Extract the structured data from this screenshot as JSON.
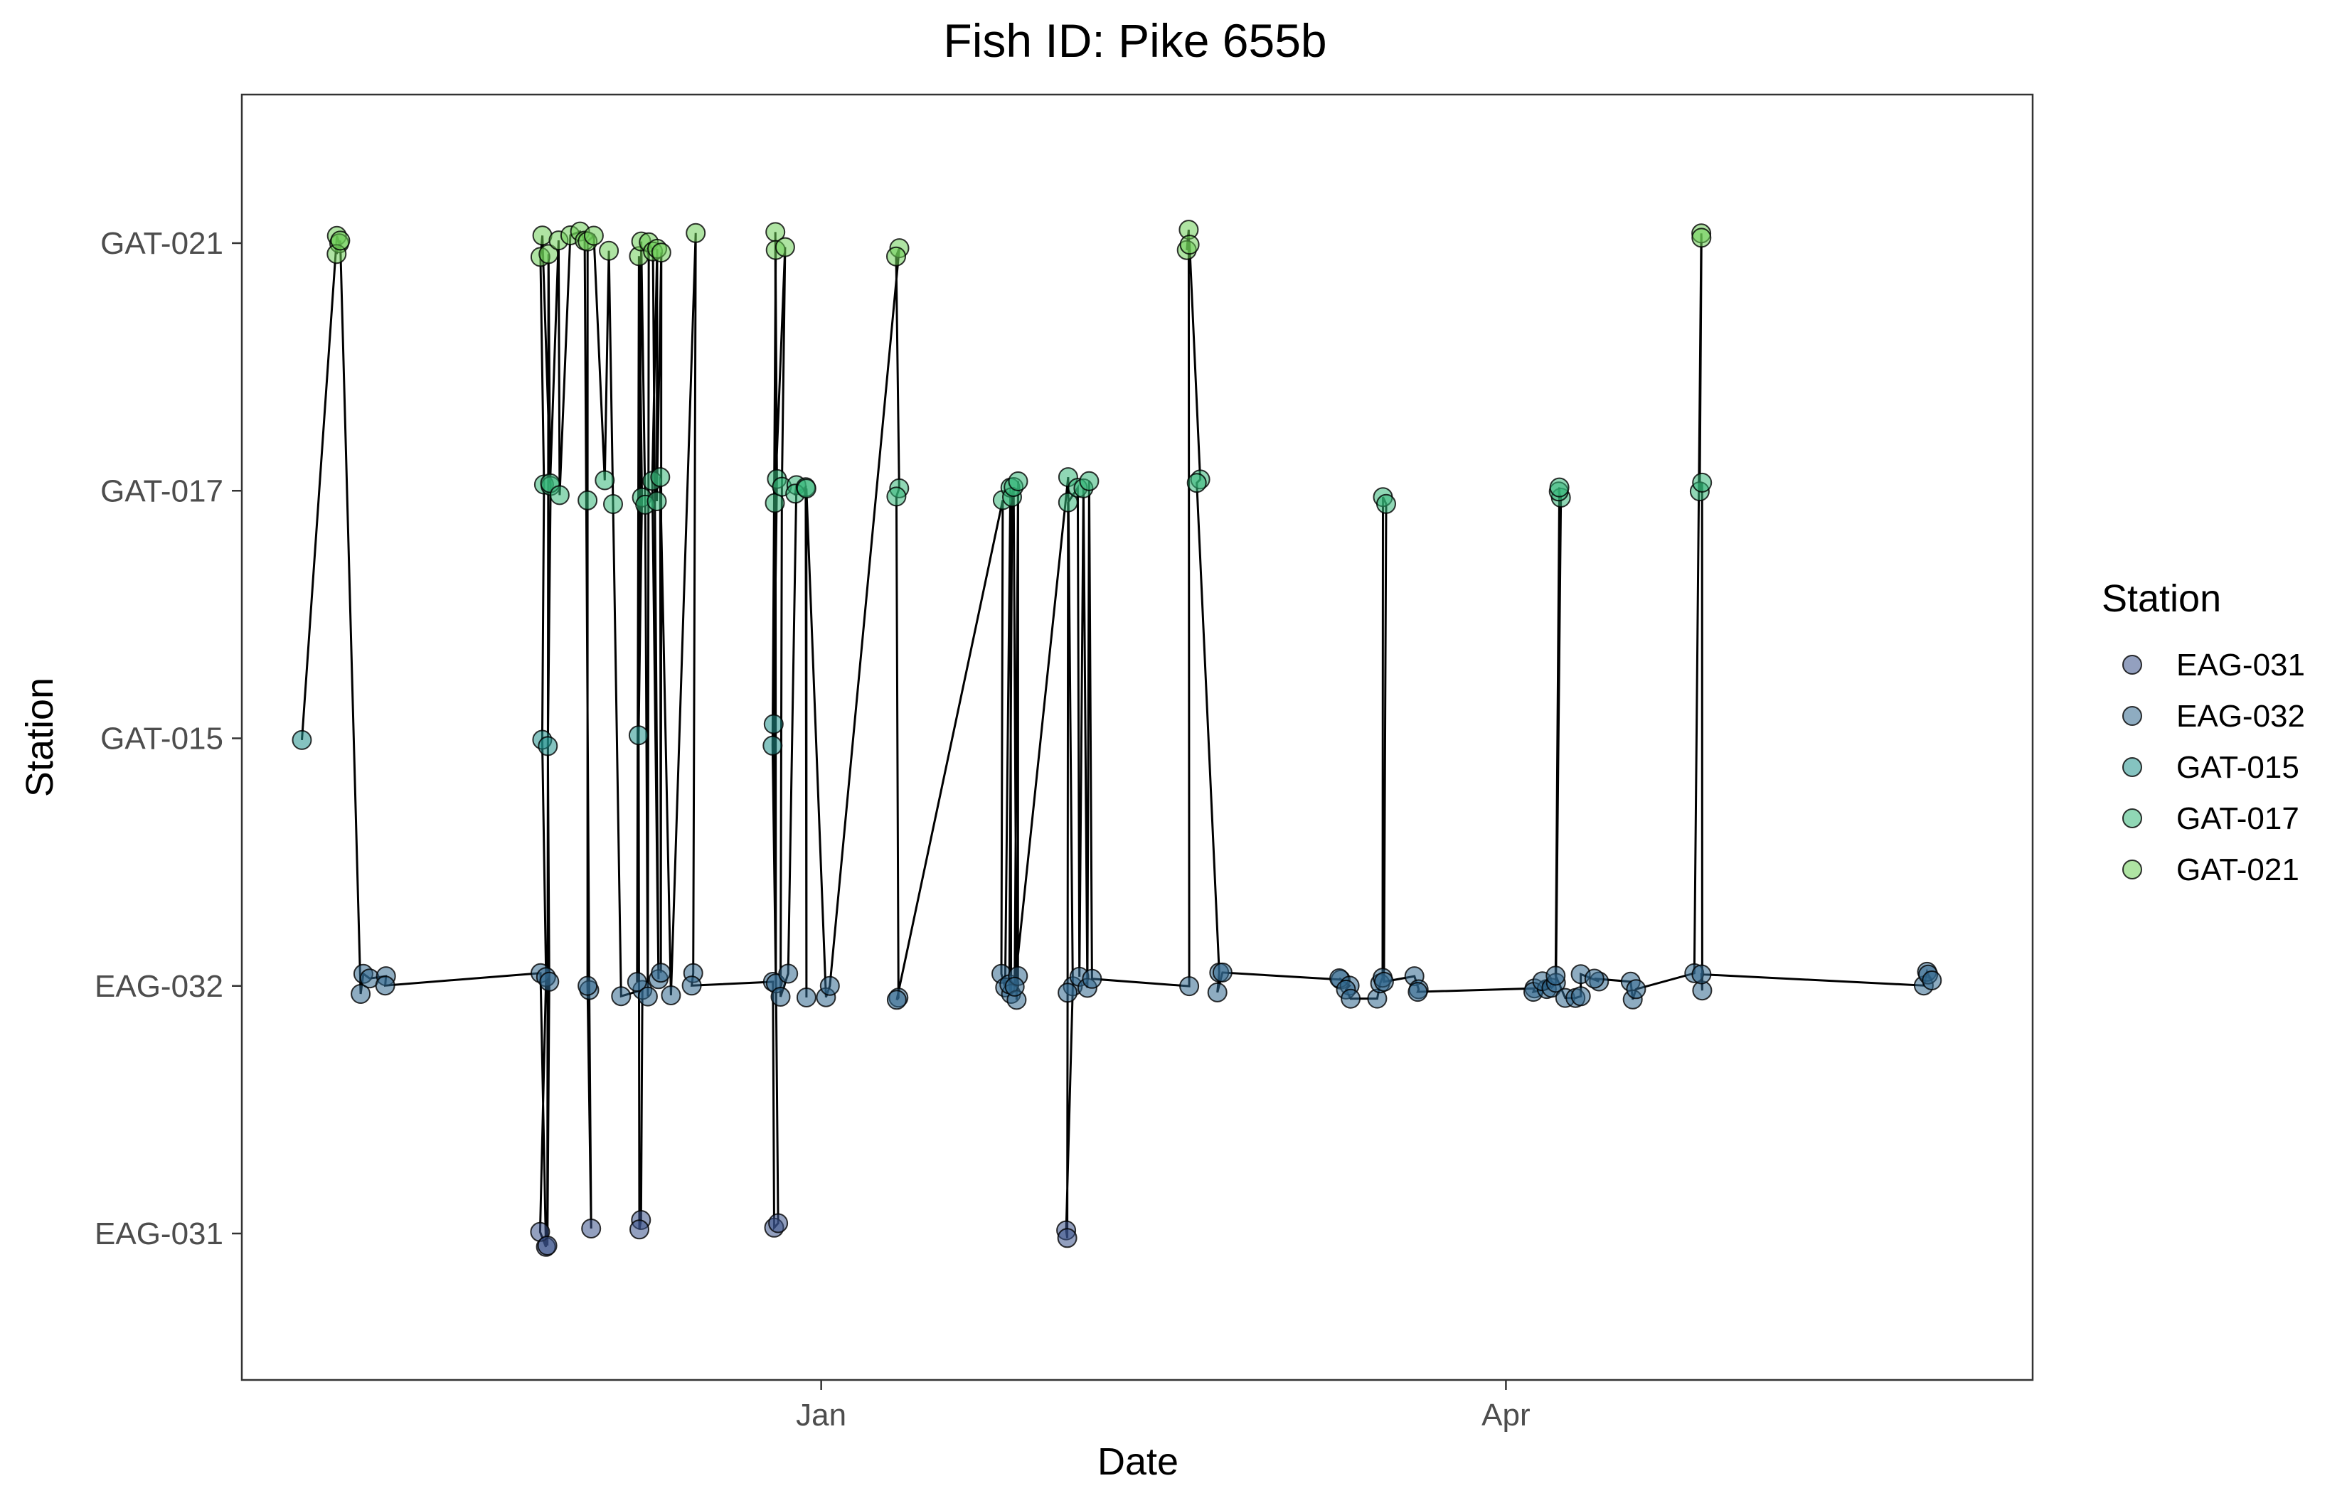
{
  "chart_data": {
    "type": "scatter",
    "title": "Fish ID: Pike 655b",
    "xlabel": "Date",
    "ylabel": "Station",
    "x_axis": {
      "kind": "date",
      "ticks": [
        {
          "label": "Jan",
          "date": "2020-01-01"
        },
        {
          "label": "Apr",
          "date": "2020-04-01"
        }
      ],
      "range": [
        "2019-10-16",
        "2020-06-10"
      ]
    },
    "y_axis": {
      "kind": "categorical",
      "categories": [
        "EAG-031",
        "EAG-032",
        "GAT-015",
        "GAT-017",
        "GAT-021"
      ]
    },
    "legend": {
      "title": "Station",
      "position": "right",
      "entries": [
        "EAG-031",
        "EAG-032",
        "GAT-015",
        "GAT-017",
        "GAT-021"
      ]
    },
    "colors": {
      "EAG-031": "#3b528b",
      "EAG-032": "#31688e",
      "GAT-015": "#21918c",
      "GAT-017": "#35b779",
      "GAT-021": "#6ece58",
      "line": "#000000",
      "frame": "#333333"
    },
    "grid": false,
    "track_line": true,
    "points": [
      {
        "x": "2019-10-24",
        "y": "GAT-015"
      },
      {
        "x": "2019-10-29",
        "y": "GAT-021"
      },
      {
        "x": "2019-10-29",
        "y": "GAT-021"
      },
      {
        "x": "2019-10-29",
        "y": "GAT-021"
      },
      {
        "x": "2019-10-29",
        "y": "GAT-021"
      },
      {
        "x": "2019-11-01",
        "y": "EAG-032"
      },
      {
        "x": "2019-11-01",
        "y": "EAG-032"
      },
      {
        "x": "2019-11-02",
        "y": "EAG-032"
      },
      {
        "x": "2019-11-04",
        "y": "EAG-032"
      },
      {
        "x": "2019-11-04",
        "y": "EAG-032"
      },
      {
        "x": "2019-11-25",
        "y": "EAG-032"
      },
      {
        "x": "2019-11-25",
        "y": "EAG-031"
      },
      {
        "x": "2019-11-25",
        "y": "EAG-031"
      },
      {
        "x": "2019-11-25",
        "y": "EAG-032"
      },
      {
        "x": "2019-11-25",
        "y": "GAT-015"
      },
      {
        "x": "2019-11-25",
        "y": "GAT-017"
      },
      {
        "x": "2019-11-25",
        "y": "GAT-021"
      },
      {
        "x": "2019-11-25",
        "y": "GAT-021"
      },
      {
        "x": "2019-11-26",
        "y": "GAT-017"
      },
      {
        "x": "2019-11-26",
        "y": "GAT-015"
      },
      {
        "x": "2019-11-26",
        "y": "EAG-032"
      },
      {
        "x": "2019-11-26",
        "y": "EAG-031"
      },
      {
        "x": "2019-11-26",
        "y": "GAT-021"
      },
      {
        "x": "2019-11-26",
        "y": "GAT-017"
      },
      {
        "x": "2019-11-27",
        "y": "GAT-021"
      },
      {
        "x": "2019-11-27",
        "y": "GAT-017"
      },
      {
        "x": "2019-11-29",
        "y": "GAT-021"
      },
      {
        "x": "2019-11-30",
        "y": "GAT-021"
      },
      {
        "x": "2019-12-01",
        "y": "GAT-021"
      },
      {
        "x": "2019-12-01",
        "y": "EAG-032"
      },
      {
        "x": "2019-12-01",
        "y": "EAG-031"
      },
      {
        "x": "2019-12-01",
        "y": "EAG-032"
      },
      {
        "x": "2019-12-01",
        "y": "GAT-017"
      },
      {
        "x": "2019-12-01",
        "y": "GAT-021"
      },
      {
        "x": "2019-12-02",
        "y": "GAT-021"
      },
      {
        "x": "2019-12-03",
        "y": "GAT-017"
      },
      {
        "x": "2019-12-04",
        "y": "GAT-021"
      },
      {
        "x": "2019-12-04",
        "y": "GAT-017"
      },
      {
        "x": "2019-12-05",
        "y": "EAG-032"
      },
      {
        "x": "2019-12-08",
        "y": "EAG-032"
      },
      {
        "x": "2019-12-08",
        "y": "EAG-031"
      },
      {
        "x": "2019-12-08",
        "y": "EAG-031"
      },
      {
        "x": "2019-12-08",
        "y": "GAT-015"
      },
      {
        "x": "2019-12-08",
        "y": "GAT-017"
      },
      {
        "x": "2019-12-08",
        "y": "GAT-021"
      },
      {
        "x": "2019-12-08",
        "y": "EAG-032"
      },
      {
        "x": "2019-12-08",
        "y": "GAT-021"
      },
      {
        "x": "2019-12-09",
        "y": "GAT-017"
      },
      {
        "x": "2019-12-09",
        "y": "EAG-032"
      },
      {
        "x": "2019-12-09",
        "y": "GAT-021"
      },
      {
        "x": "2019-12-10",
        "y": "GAT-021"
      },
      {
        "x": "2019-12-10",
        "y": "EAG-032"
      },
      {
        "x": "2019-12-10",
        "y": "GAT-017"
      },
      {
        "x": "2019-12-10",
        "y": "GAT-021"
      },
      {
        "x": "2019-12-10",
        "y": "GAT-017"
      },
      {
        "x": "2019-12-11",
        "y": "GAT-021"
      },
      {
        "x": "2019-12-11",
        "y": "EAG-032"
      },
      {
        "x": "2019-12-11",
        "y": "GAT-017"
      },
      {
        "x": "2019-12-12",
        "y": "EAG-032"
      },
      {
        "x": "2019-12-15",
        "y": "GAT-021"
      },
      {
        "x": "2019-12-15",
        "y": "EAG-032"
      },
      {
        "x": "2019-12-15",
        "y": "EAG-032"
      },
      {
        "x": "2019-12-26",
        "y": "EAG-032"
      },
      {
        "x": "2019-12-26",
        "y": "EAG-031"
      },
      {
        "x": "2019-12-26",
        "y": "EAG-031"
      },
      {
        "x": "2019-12-26",
        "y": "GAT-015"
      },
      {
        "x": "2019-12-26",
        "y": "GAT-017"
      },
      {
        "x": "2019-12-26",
        "y": "GAT-021"
      },
      {
        "x": "2019-12-26",
        "y": "EAG-032"
      },
      {
        "x": "2019-12-26",
        "y": "GAT-015"
      },
      {
        "x": "2019-12-26",
        "y": "GAT-021"
      },
      {
        "x": "2019-12-26",
        "y": "GAT-017"
      },
      {
        "x": "2019-12-27",
        "y": "GAT-021"
      },
      {
        "x": "2019-12-27",
        "y": "GAT-017"
      },
      {
        "x": "2019-12-27",
        "y": "EAG-032"
      },
      {
        "x": "2019-12-28",
        "y": "EAG-032"
      },
      {
        "x": "2019-12-29",
        "y": "GAT-017"
      },
      {
        "x": "2019-12-29",
        "y": "GAT-017"
      },
      {
        "x": "2019-12-30",
        "y": "GAT-017"
      },
      {
        "x": "2019-12-30",
        "y": "EAG-032"
      },
      {
        "x": "2019-12-30",
        "y": "GAT-017"
      },
      {
        "x": "2020-01-02",
        "y": "EAG-032"
      },
      {
        "x": "2020-01-02",
        "y": "EAG-032"
      },
      {
        "x": "2020-01-11",
        "y": "GAT-021"
      },
      {
        "x": "2020-01-11",
        "y": "GAT-021"
      },
      {
        "x": "2020-01-11",
        "y": "GAT-017"
      },
      {
        "x": "2020-01-11",
        "y": "GAT-017"
      },
      {
        "x": "2020-01-11",
        "y": "EAG-032"
      },
      {
        "x": "2020-01-11",
        "y": "EAG-032"
      },
      {
        "x": "2020-01-25",
        "y": "GAT-017"
      },
      {
        "x": "2020-01-25",
        "y": "EAG-032"
      },
      {
        "x": "2020-01-25",
        "y": "EAG-032"
      },
      {
        "x": "2020-01-26",
        "y": "GAT-017"
      },
      {
        "x": "2020-01-26",
        "y": "EAG-032"
      },
      {
        "x": "2020-01-26",
        "y": "EAG-032"
      },
      {
        "x": "2020-01-26",
        "y": "GAT-017"
      },
      {
        "x": "2020-01-27",
        "y": "GAT-017"
      },
      {
        "x": "2020-01-27",
        "y": "EAG-032"
      },
      {
        "x": "2020-01-27",
        "y": "EAG-032"
      },
      {
        "x": "2020-01-27",
        "y": "GAT-017"
      },
      {
        "x": "2020-01-27",
        "y": "EAG-032"
      },
      {
        "x": "2020-02-03",
        "y": "GAT-017"
      },
      {
        "x": "2020-02-03",
        "y": "EAG-032"
      },
      {
        "x": "2020-02-03",
        "y": "EAG-031"
      },
      {
        "x": "2020-02-03",
        "y": "EAG-031"
      },
      {
        "x": "2020-02-03",
        "y": "EAG-032"
      },
      {
        "x": "2020-02-03",
        "y": "GAT-017"
      },
      {
        "x": "2020-02-04",
        "y": "GAT-017"
      },
      {
        "x": "2020-02-04",
        "y": "EAG-032"
      },
      {
        "x": "2020-02-05",
        "y": "GAT-017"
      },
      {
        "x": "2020-02-05",
        "y": "EAG-032"
      },
      {
        "x": "2020-02-06",
        "y": "GAT-017"
      },
      {
        "x": "2020-02-06",
        "y": "EAG-032"
      },
      {
        "x": "2020-02-19",
        "y": "EAG-032"
      },
      {
        "x": "2020-02-19",
        "y": "GAT-021"
      },
      {
        "x": "2020-02-19",
        "y": "GAT-021"
      },
      {
        "x": "2020-02-19",
        "y": "GAT-021"
      },
      {
        "x": "2020-02-20",
        "y": "GAT-017"
      },
      {
        "x": "2020-02-20",
        "y": "GAT-017"
      },
      {
        "x": "2020-02-23",
        "y": "EAG-032"
      },
      {
        "x": "2020-02-23",
        "y": "EAG-032"
      },
      {
        "x": "2020-02-23",
        "y": "EAG-032"
      },
      {
        "x": "2020-03-10",
        "y": "EAG-032"
      },
      {
        "x": "2020-03-10",
        "y": "EAG-032"
      },
      {
        "x": "2020-03-11",
        "y": "EAG-032"
      },
      {
        "x": "2020-03-11",
        "y": "EAG-032"
      },
      {
        "x": "2020-03-11",
        "y": "EAG-032"
      },
      {
        "x": "2020-03-15",
        "y": "EAG-032"
      },
      {
        "x": "2020-03-15",
        "y": "EAG-032"
      },
      {
        "x": "2020-03-16",
        "y": "EAG-032"
      },
      {
        "x": "2020-03-16",
        "y": "GAT-017"
      },
      {
        "x": "2020-03-16",
        "y": "GAT-017"
      },
      {
        "x": "2020-03-16",
        "y": "EAG-032"
      },
      {
        "x": "2020-03-20",
        "y": "EAG-032"
      },
      {
        "x": "2020-03-20",
        "y": "EAG-032"
      },
      {
        "x": "2020-03-20",
        "y": "EAG-032"
      },
      {
        "x": "2020-04-05",
        "y": "EAG-032"
      },
      {
        "x": "2020-04-05",
        "y": "EAG-032"
      },
      {
        "x": "2020-04-06",
        "y": "EAG-032"
      },
      {
        "x": "2020-04-06",
        "y": "EAG-032"
      },
      {
        "x": "2020-04-07",
        "y": "EAG-032"
      },
      {
        "x": "2020-04-08",
        "y": "EAG-032"
      },
      {
        "x": "2020-04-08",
        "y": "GAT-017"
      },
      {
        "x": "2020-04-08",
        "y": "GAT-017"
      },
      {
        "x": "2020-04-08",
        "y": "GAT-017"
      },
      {
        "x": "2020-04-08",
        "y": "EAG-032"
      },
      {
        "x": "2020-04-09",
        "y": "EAG-032"
      },
      {
        "x": "2020-04-10",
        "y": "EAG-032"
      },
      {
        "x": "2020-04-11",
        "y": "EAG-032"
      },
      {
        "x": "2020-04-11",
        "y": "EAG-032"
      },
      {
        "x": "2020-04-13",
        "y": "EAG-032"
      },
      {
        "x": "2020-04-13",
        "y": "EAG-032"
      },
      {
        "x": "2020-04-18",
        "y": "EAG-032"
      },
      {
        "x": "2020-04-18",
        "y": "EAG-032"
      },
      {
        "x": "2020-04-18",
        "y": "EAG-032"
      },
      {
        "x": "2020-04-26",
        "y": "EAG-032"
      },
      {
        "x": "2020-04-27",
        "y": "GAT-021"
      },
      {
        "x": "2020-04-27",
        "y": "GAT-021"
      },
      {
        "x": "2020-04-27",
        "y": "GAT-017"
      },
      {
        "x": "2020-04-27",
        "y": "GAT-017"
      },
      {
        "x": "2020-04-27",
        "y": "EAG-032"
      },
      {
        "x": "2020-04-27",
        "y": "EAG-032"
      },
      {
        "x": "2020-05-27",
        "y": "EAG-032"
      },
      {
        "x": "2020-05-27",
        "y": "EAG-032"
      },
      {
        "x": "2020-05-27",
        "y": "EAG-032"
      },
      {
        "x": "2020-05-28",
        "y": "EAG-032"
      }
    ]
  }
}
